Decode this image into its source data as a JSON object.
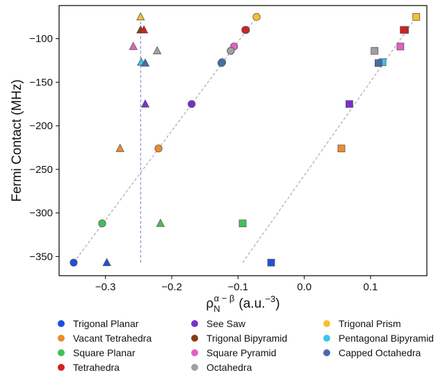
{
  "chart_data": {
    "type": "scatter",
    "ylabel": "Fermi Contact (MHz)",
    "xlabel": {
      "symbol": "ρ",
      "subscript": "N",
      "superscript": "α − β",
      "units_prefix": "(a.u.",
      "units_exp": "−3",
      "units_suffix": ")"
    },
    "xlim": [
      -0.37,
      0.185
    ],
    "ylim": [
      -372,
      -62
    ],
    "xticks": [
      {
        "value": -0.3,
        "label": "−0.3"
      },
      {
        "value": -0.2,
        "label": "−0.2"
      },
      {
        "value": -0.1,
        "label": "−0.1"
      },
      {
        "value": 0.0,
        "label": "0.0"
      },
      {
        "value": 0.1,
        "label": "0.1"
      }
    ],
    "yticks": [
      {
        "value": -100,
        "label": "−100"
      },
      {
        "value": -150,
        "label": "−150"
      },
      {
        "value": -200,
        "label": "−200"
      },
      {
        "value": -250,
        "label": "−250"
      },
      {
        "value": -300,
        "label": "−300"
      },
      {
        "value": -350,
        "label": "−350"
      }
    ],
    "grid": false,
    "legend_placement": "below",
    "legend": [
      {
        "label": "Trigonal Planar",
        "color": "#1f4fe0"
      },
      {
        "label": "See Saw",
        "color": "#7a2fd0"
      },
      {
        "label": "Trigonal Prism",
        "color": "#f3c12b"
      },
      {
        "label": "Vacant Tetrahedra",
        "color": "#f08a2c"
      },
      {
        "label": "Trigonal Bipyramid",
        "color": "#8a3b12"
      },
      {
        "label": "Pentagonal Bipyramid",
        "color": "#33c8ee"
      },
      {
        "label": "Square Planar",
        "color": "#45c054"
      },
      {
        "label": "Square Pyramid",
        "color": "#e55ec8"
      },
      {
        "label": "Capped Octahedra",
        "color": "#4a6aa8"
      },
      {
        "label": "Tetrahedra",
        "color": "#d41f1f"
      },
      {
        "label": "Octahedra",
        "color": "#a0a0a0"
      }
    ],
    "series": [
      {
        "color": "#1f4fe0",
        "y": -357,
        "circle": -0.348,
        "triangle": -0.298,
        "square": -0.05
      },
      {
        "color": "#7a2fd0",
        "y": -175,
        "circle": -0.17,
        "triangle": -0.24,
        "square": 0.068
      },
      {
        "color": "#f3c12b",
        "y": -75,
        "circle": -0.072,
        "triangle": -0.247,
        "square": 0.169
      },
      {
        "color": "#f08a2c",
        "y": -226,
        "circle": -0.22,
        "triangle": -0.278,
        "square": 0.056
      },
      {
        "color": "#8a3b12",
        "y": -90,
        "circle": -0.088,
        "triangle": -0.247,
        "square": 0.152
      },
      {
        "color": "#33c8ee",
        "y": -127,
        "circle": -0.124,
        "triangle": -0.246,
        "square": 0.118
      },
      {
        "color": "#45c054",
        "y": -312,
        "circle": -0.305,
        "triangle": -0.217,
        "square": -0.093
      },
      {
        "color": "#e55ec8",
        "y": -109,
        "circle": -0.106,
        "triangle": -0.258,
        "square": 0.145
      },
      {
        "color": "#4a6aa8",
        "y": -128,
        "circle": -0.125,
        "triangle": -0.24,
        "square": 0.112
      },
      {
        "color": "#d41f1f",
        "y": -90,
        "circle": -0.089,
        "triangle": -0.242,
        "square": 0.15
      },
      {
        "color": "#a0a0a0",
        "y": -114,
        "circle": -0.111,
        "triangle": -0.222,
        "square": 0.106
      }
    ],
    "reference_lines": [
      {
        "color": "#9a9aa8",
        "dashed": true,
        "from": [
          -0.348,
          -357
        ],
        "to": [
          -0.072,
          -75
        ]
      },
      {
        "color": "#9a9aa8",
        "dashed": true,
        "from": [
          -0.093,
          -357
        ],
        "to": [
          0.169,
          -75
        ]
      },
      {
        "color": "#7a6fd8",
        "dashed": true,
        "from": [
          -0.247,
          -357
        ],
        "to": [
          -0.247,
          -75
        ]
      }
    ]
  }
}
